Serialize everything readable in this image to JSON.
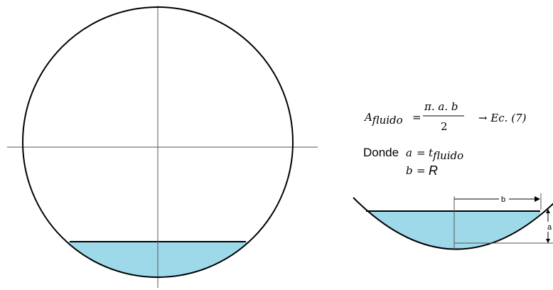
{
  "colors": {
    "fluid": "#9ed9ea",
    "stroke": "#000000",
    "axis": "#333333"
  },
  "formula": {
    "lhs_symbol": "A",
    "lhs_subscript": "fluido",
    "equals": "=",
    "numerator": "π. a. b",
    "denominator": "2",
    "reference": "→ Ec. (7)"
  },
  "where": {
    "keyword": "Donde",
    "line1": {
      "var": "a",
      "eq": "=",
      "rhs_symbol": "t",
      "rhs_subscript": "fluido"
    },
    "line2": {
      "var": "b",
      "eq": "=",
      "rhs": "R"
    }
  },
  "dimension_labels": {
    "b": "b",
    "a": "a"
  }
}
